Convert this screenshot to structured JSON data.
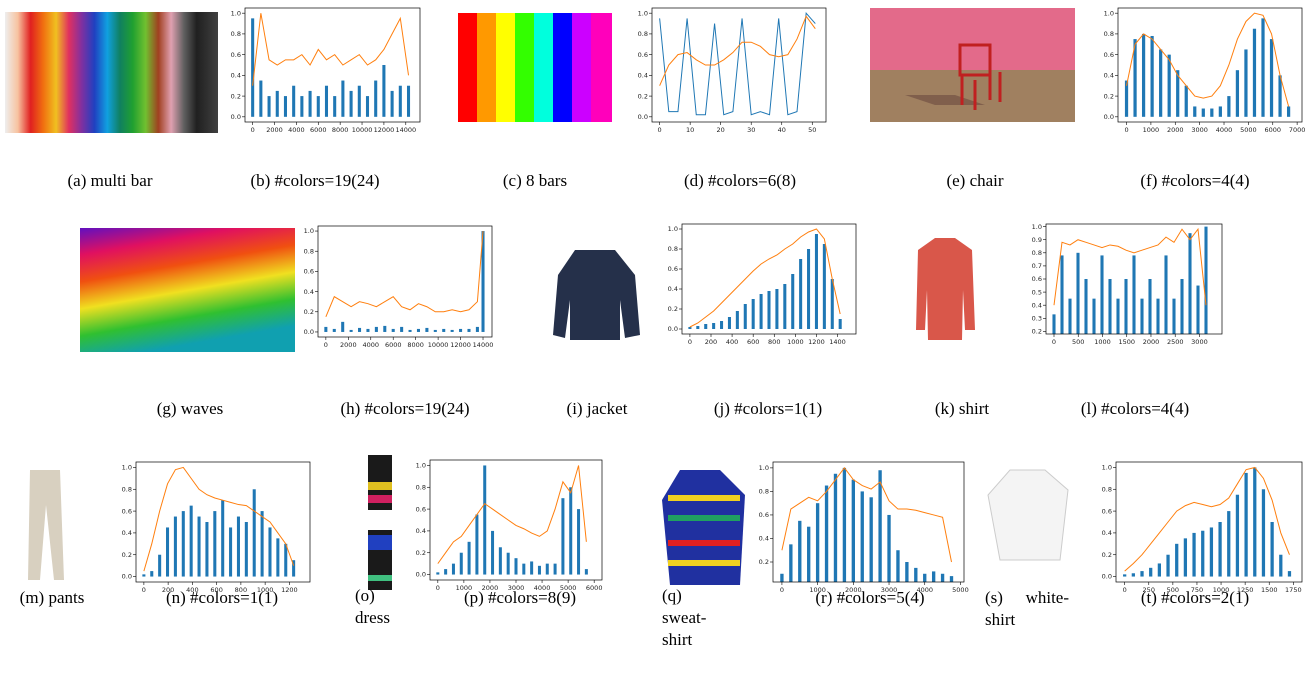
{
  "images": [
    {
      "caption": "(a) multi bar"
    },
    {
      "caption": "(c) 8 bars"
    },
    {
      "caption": "(e) chair"
    },
    {
      "caption": "(g) waves"
    },
    {
      "caption": "(i) jacket"
    },
    {
      "caption": "(k) shirt"
    },
    {
      "caption": "(m) pants"
    },
    {
      "caption": "(o) dress"
    },
    {
      "caption": "(q) sweat-shirt"
    },
    {
      "caption": "(s) white-shirt"
    }
  ],
  "chart_data": [
    {
      "type": "histogram",
      "caption": "(b) #colors=19(24)",
      "x": [
        0,
        750,
        1500,
        2250,
        3000,
        3750,
        4500,
        5250,
        6000,
        6750,
        7500,
        8250,
        9000,
        9750,
        10500,
        11250,
        12000,
        12750,
        13500,
        14250
      ],
      "series": [
        {
          "type": "bar",
          "color": "#1f77b4",
          "values": [
            0.95,
            0.35,
            0.2,
            0.25,
            0.2,
            0.3,
            0.2,
            0.25,
            0.2,
            0.3,
            0.2,
            0.35,
            0.25,
            0.3,
            0.2,
            0.35,
            0.5,
            0.25,
            0.3,
            0.3
          ]
        },
        {
          "type": "line",
          "color": "#ff7f0e",
          "values": [
            0.3,
            1.0,
            0.55,
            0.5,
            0.55,
            0.55,
            0.6,
            0.5,
            0.65,
            0.55,
            0.6,
            0.5,
            0.55,
            0.6,
            0.5,
            0.55,
            0.65,
            0.8,
            0.95,
            0.4
          ]
        }
      ],
      "xlim": [
        -700,
        15300
      ],
      "xticks": [
        0,
        2000,
        4000,
        6000,
        8000,
        10000,
        12000,
        14000
      ],
      "ylim": [
        -0.05,
        1.05
      ],
      "yticks": [
        {
          "value": 0,
          "label": "0.0"
        },
        0.2,
        0.4,
        0.6,
        0.8,
        {
          "value": 1,
          "label": "1.0"
        }
      ]
    },
    {
      "type": "histogram",
      "caption": "(d) #colors=6(8)",
      "x": [
        0,
        3,
        6,
        9,
        12,
        15,
        18,
        21,
        24,
        27,
        30,
        33,
        36,
        39,
        42,
        45,
        48,
        51
      ],
      "series": [
        {
          "type": "line",
          "color": "#1f77b4",
          "values": [
            0.95,
            0.05,
            0.05,
            0.95,
            0.02,
            0.02,
            0.9,
            0.02,
            0.05,
            0.95,
            0.02,
            0.05,
            0.02,
            0.95,
            0.02,
            0.05,
            1.0,
            0.9
          ]
        },
        {
          "type": "line",
          "color": "#ff7f0e",
          "values": [
            0.3,
            0.5,
            0.6,
            0.62,
            0.55,
            0.5,
            0.5,
            0.55,
            0.62,
            0.72,
            0.72,
            0.68,
            0.6,
            0.58,
            0.6,
            0.75,
            0.97,
            0.85
          ]
        }
      ],
      "xlim": [
        -2.5,
        54.5
      ],
      "xticks": [
        0,
        10,
        20,
        30,
        40,
        50
      ],
      "ylim": [
        -0.05,
        1.05
      ],
      "yticks": [
        {
          "value": 0,
          "label": "0.0"
        },
        0.2,
        0.4,
        0.6,
        0.8,
        {
          "value": 1,
          "label": "1.0"
        }
      ]
    },
    {
      "type": "histogram",
      "caption": "(f) #colors=4(4)",
      "x": [
        0,
        350,
        700,
        1050,
        1400,
        1750,
        2100,
        2450,
        2800,
        3150,
        3500,
        3850,
        4200,
        4550,
        4900,
        5250,
        5600,
        5950,
        6300,
        6650
      ],
      "series": [
        {
          "type": "bar",
          "color": "#1f77b4",
          "values": [
            0.35,
            0.75,
            0.8,
            0.78,
            0.65,
            0.6,
            0.45,
            0.3,
            0.1,
            0.08,
            0.08,
            0.1,
            0.2,
            0.45,
            0.65,
            0.85,
            0.95,
            0.75,
            0.4,
            0.1
          ]
        },
        {
          "type": "line",
          "color": "#ff7f0e",
          "values": [
            0.3,
            0.7,
            0.8,
            0.75,
            0.65,
            0.55,
            0.4,
            0.3,
            0.2,
            0.18,
            0.2,
            0.3,
            0.5,
            0.75,
            0.92,
            1.0,
            0.98,
            0.8,
            0.4,
            0.1
          ]
        }
      ],
      "xlim": [
        -350,
        7200
      ],
      "xticks": [
        0,
        1000,
        2000,
        3000,
        4000,
        5000,
        6000,
        7000
      ],
      "ylim": [
        -0.05,
        1.05
      ],
      "yticks": [
        {
          "value": 0,
          "label": "0.0"
        },
        0.2,
        0.4,
        0.6,
        0.8,
        {
          "value": 1,
          "label": "1.0"
        }
      ]
    },
    {
      "type": "histogram",
      "caption": "(h) #colors=19(24)",
      "x": [
        0,
        750,
        1500,
        2250,
        3000,
        3750,
        4500,
        5250,
        6000,
        6750,
        7500,
        8250,
        9000,
        9750,
        10500,
        11250,
        12000,
        12750,
        13500,
        14000
      ],
      "series": [
        {
          "type": "bar",
          "color": "#1f77b4",
          "values": [
            0.05,
            0.03,
            0.1,
            0.02,
            0.04,
            0.03,
            0.05,
            0.06,
            0.03,
            0.05,
            0.02,
            0.03,
            0.04,
            0.02,
            0.03,
            0.02,
            0.03,
            0.03,
            0.05,
            1.0
          ]
        },
        {
          "type": "line",
          "color": "#ff7f0e",
          "values": [
            0.15,
            0.35,
            0.3,
            0.25,
            0.3,
            0.28,
            0.25,
            0.3,
            0.35,
            0.25,
            0.22,
            0.28,
            0.25,
            0.2,
            0.2,
            0.22,
            0.2,
            0.22,
            0.3,
            1.0
          ]
        }
      ],
      "xlim": [
        -700,
        14800
      ],
      "xticks": [
        0,
        2000,
        4000,
        6000,
        8000,
        10000,
        12000,
        14000
      ],
      "ylim": [
        -0.05,
        1.05
      ],
      "yticks": [
        {
          "value": 0,
          "label": "0.0"
        },
        0.2,
        0.4,
        0.6,
        0.8,
        {
          "value": 1,
          "label": "1.0"
        }
      ]
    },
    {
      "type": "histogram",
      "caption": "(j) #colors=1(1)",
      "x": [
        0,
        75,
        150,
        225,
        300,
        375,
        450,
        525,
        600,
        675,
        750,
        825,
        900,
        975,
        1050,
        1125,
        1200,
        1275,
        1350,
        1425
      ],
      "series": [
        {
          "type": "bar",
          "color": "#1f77b4",
          "values": [
            0.02,
            0.03,
            0.05,
            0.06,
            0.08,
            0.12,
            0.18,
            0.25,
            0.3,
            0.35,
            0.38,
            0.4,
            0.45,
            0.55,
            0.7,
            0.8,
            0.95,
            0.85,
            0.5,
            0.1
          ]
        },
        {
          "type": "line",
          "color": "#ff7f0e",
          "values": [
            0.02,
            0.06,
            0.12,
            0.18,
            0.26,
            0.34,
            0.42,
            0.5,
            0.58,
            0.65,
            0.7,
            0.74,
            0.8,
            0.85,
            0.92,
            0.97,
            1.0,
            0.9,
            0.5,
            0.15
          ]
        }
      ],
      "xlim": [
        -75,
        1575
      ],
      "xticks": [
        0,
        200,
        400,
        600,
        800,
        1000,
        1200,
        1400
      ],
      "ylim": [
        -0.05,
        1.05
      ],
      "yticks": [
        {
          "value": 0,
          "label": "0.0"
        },
        0.2,
        0.4,
        0.6,
        0.8,
        {
          "value": 1,
          "label": "1.0"
        }
      ]
    },
    {
      "type": "histogram",
      "caption": "(l) #colors=4(4)",
      "x": [
        0,
        165,
        330,
        495,
        660,
        825,
        990,
        1155,
        1320,
        1485,
        1650,
        1815,
        1980,
        2145,
        2310,
        2475,
        2640,
        2805,
        2970,
        3135
      ],
      "series": [
        {
          "type": "bar",
          "color": "#1f77b4",
          "values": [
            0.33,
            0.78,
            0.45,
            0.8,
            0.6,
            0.45,
            0.78,
            0.6,
            0.45,
            0.6,
            0.78,
            0.45,
            0.6,
            0.45,
            0.78,
            0.45,
            0.6,
            0.95,
            0.55,
            1.0
          ]
        },
        {
          "type": "line",
          "color": "#ff7f0e",
          "values": [
            0.4,
            0.88,
            0.86,
            0.9,
            0.88,
            0.86,
            0.84,
            0.86,
            0.85,
            0.82,
            0.8,
            0.82,
            0.84,
            0.86,
            0.92,
            0.88,
            0.98,
            0.9,
            0.98,
            0.4
          ]
        }
      ],
      "xlim": [
        -165,
        3465
      ],
      "xticks": [
        0,
        500,
        1000,
        1500,
        2000,
        2500,
        3000
      ],
      "ylim": [
        0.18,
        1.02
      ],
      "yticks": [
        0.2,
        0.3,
        0.4,
        0.5,
        0.6,
        0.7,
        0.8,
        0.9,
        {
          "value": 1,
          "label": "1.0"
        }
      ]
    },
    {
      "type": "histogram",
      "caption": "(n) #colors=1(1)",
      "x": [
        0,
        65,
        130,
        195,
        260,
        325,
        390,
        455,
        520,
        585,
        650,
        715,
        780,
        845,
        910,
        975,
        1040,
        1105,
        1170,
        1235
      ],
      "series": [
        {
          "type": "bar",
          "color": "#1f77b4",
          "values": [
            0.02,
            0.05,
            0.2,
            0.45,
            0.55,
            0.6,
            0.65,
            0.55,
            0.5,
            0.6,
            0.7,
            0.45,
            0.55,
            0.5,
            0.8,
            0.6,
            0.45,
            0.35,
            0.3,
            0.15
          ]
        },
        {
          "type": "line",
          "color": "#ff7f0e",
          "values": [
            0.05,
            0.3,
            0.6,
            0.85,
            0.98,
            1.0,
            0.9,
            0.8,
            0.75,
            0.72,
            0.7,
            0.68,
            0.66,
            0.65,
            0.6,
            0.55,
            0.5,
            0.4,
            0.3,
            0.1
          ]
        }
      ],
      "xlim": [
        -65,
        1370
      ],
      "xticks": [
        0,
        200,
        400,
        600,
        800,
        1000,
        1200
      ],
      "ylim": [
        -0.05,
        1.05
      ],
      "yticks": [
        {
          "value": 0,
          "label": "0.0"
        },
        0.2,
        0.4,
        0.6,
        0.8,
        {
          "value": 1,
          "label": "1.0"
        }
      ]
    },
    {
      "type": "histogram",
      "caption": "(p) #colors=8(9)",
      "x": [
        0,
        300,
        600,
        900,
        1200,
        1500,
        1800,
        2100,
        2400,
        2700,
        3000,
        3300,
        3600,
        3900,
        4200,
        4500,
        4800,
        5100,
        5400,
        5700
      ],
      "series": [
        {
          "type": "bar",
          "color": "#1f77b4",
          "values": [
            0.02,
            0.05,
            0.1,
            0.2,
            0.3,
            0.55,
            1.0,
            0.4,
            0.25,
            0.2,
            0.15,
            0.1,
            0.12,
            0.08,
            0.1,
            0.1,
            0.7,
            0.8,
            0.6,
            0.05
          ]
        },
        {
          "type": "line",
          "color": "#ff7f0e",
          "values": [
            0.1,
            0.2,
            0.3,
            0.35,
            0.45,
            0.55,
            0.65,
            0.6,
            0.55,
            0.5,
            0.45,
            0.42,
            0.38,
            0.35,
            0.4,
            0.6,
            0.85,
            0.75,
            1.0,
            0.3
          ]
        }
      ],
      "xlim": [
        -300,
        6300
      ],
      "xticks": [
        0,
        1000,
        2000,
        3000,
        4000,
        5000,
        6000
      ],
      "ylim": [
        -0.05,
        1.05
      ],
      "yticks": [
        {
          "value": 0,
          "label": "0.0"
        },
        0.2,
        0.4,
        0.6,
        0.8,
        {
          "value": 1,
          "label": "1.0"
        }
      ]
    },
    {
      "type": "histogram",
      "caption": "(r) #colors=5(4)",
      "x": [
        0,
        250,
        500,
        750,
        1000,
        1250,
        1500,
        1750,
        2000,
        2250,
        2500,
        2750,
        3000,
        3250,
        3500,
        3750,
        4000,
        4250,
        4500,
        4750
      ],
      "series": [
        {
          "type": "bar",
          "color": "#1f77b4",
          "values": [
            0.1,
            0.35,
            0.55,
            0.5,
            0.7,
            0.85,
            0.95,
            1.0,
            0.9,
            0.8,
            0.75,
            0.98,
            0.6,
            0.3,
            0.2,
            0.15,
            0.1,
            0.12,
            0.1,
            0.08
          ]
        },
        {
          "type": "line",
          "color": "#ff7f0e",
          "values": [
            0.3,
            0.65,
            0.7,
            0.75,
            0.72,
            0.8,
            0.9,
            1.0,
            0.9,
            0.85,
            0.82,
            0.88,
            0.72,
            0.65,
            0.65,
            0.64,
            0.62,
            0.6,
            0.58,
            0.2
          ]
        }
      ],
      "xlim": [
        -250,
        5100
      ],
      "xticks": [
        0,
        1000,
        2000,
        3000,
        4000,
        5000
      ],
      "ylim": [
        0.03,
        1.05
      ],
      "yticks": [
        0.2,
        0.4,
        0.6,
        0.8,
        {
          "value": 1,
          "label": "1.0"
        }
      ]
    },
    {
      "type": "histogram",
      "caption": "(t) #colors=2(1)",
      "x": [
        0,
        90,
        180,
        270,
        360,
        450,
        540,
        630,
        720,
        810,
        900,
        990,
        1080,
        1170,
        1260,
        1350,
        1440,
        1530,
        1620,
        1710
      ],
      "series": [
        {
          "type": "bar",
          "color": "#1f77b4",
          "values": [
            0.02,
            0.03,
            0.05,
            0.08,
            0.12,
            0.2,
            0.3,
            0.35,
            0.4,
            0.42,
            0.45,
            0.5,
            0.6,
            0.75,
            0.95,
            1.0,
            0.8,
            0.5,
            0.2,
            0.05
          ]
        },
        {
          "type": "line",
          "color": "#ff7f0e",
          "values": [
            0.05,
            0.12,
            0.2,
            0.3,
            0.4,
            0.5,
            0.6,
            0.65,
            0.68,
            0.66,
            0.64,
            0.66,
            0.72,
            0.85,
            0.98,
            1.0,
            0.9,
            0.7,
            0.4,
            0.2
          ]
        }
      ],
      "xlim": [
        -90,
        1840
      ],
      "xticks": [
        0,
        250,
        500,
        750,
        1000,
        1250,
        1500,
        1750
      ],
      "ylim": [
        -0.05,
        1.05
      ],
      "yticks": [
        {
          "value": 0,
          "label": "0.0"
        },
        0.2,
        0.4,
        0.6,
        0.8,
        {
          "value": 1,
          "label": "1.0"
        }
      ]
    }
  ]
}
